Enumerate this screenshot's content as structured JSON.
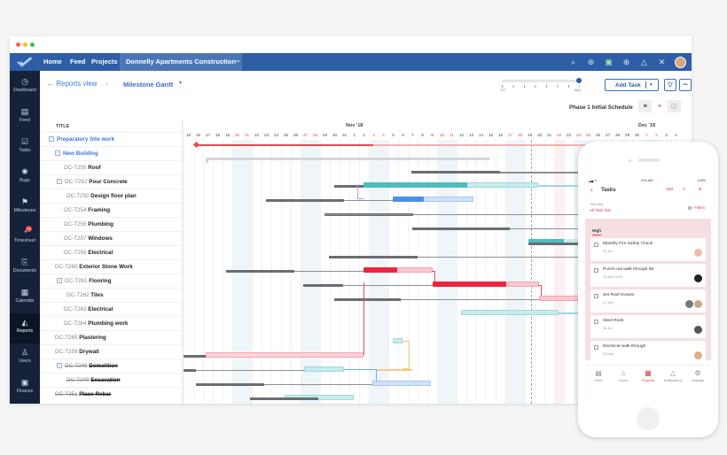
{
  "window": {
    "traffic_lights": [
      "#ff5f56",
      "#ffbd2e",
      "#27c93f"
    ]
  },
  "nav": {
    "logo": "checkmark-logo",
    "items": [
      "Home",
      "Feed",
      "Projects"
    ],
    "active_project": "Donnelly Apartments Construction",
    "more": "•••",
    "icons": [
      "search-icon",
      "gamepad-icon",
      "chat-icon",
      "plus-circle-icon",
      "bell-icon",
      "tools-icon",
      "avatar"
    ]
  },
  "sidebar": {
    "items": [
      {
        "label": "Dashboard",
        "icon": "dashboard-icon"
      },
      {
        "label": "Feed",
        "icon": "feed-icon"
      },
      {
        "label": "Tasks",
        "icon": "tasks-icon"
      },
      {
        "label": "Bugs",
        "icon": "bug-icon"
      },
      {
        "label": "Milestones",
        "icon": "milestone-icon"
      },
      {
        "label": "Timesheet",
        "icon": "timesheet-icon",
        "badge": "99"
      },
      {
        "label": "Documents",
        "icon": "documents-icon"
      },
      {
        "label": "Calendar",
        "icon": "calendar-icon"
      },
      {
        "label": "Reports",
        "icon": "reports-icon",
        "active": true
      },
      {
        "label": "Users",
        "icon": "users-icon"
      },
      {
        "label": "Finance",
        "icon": "finance-icon"
      }
    ]
  },
  "toolbar": {
    "back_label": "← Reports view",
    "crumb_sep": "›",
    "view_name": "Milestone Gantt",
    "dropdown_arrow": "▾",
    "zoom_min": "FIT",
    "zoom_max": "MAX",
    "add_task": "Add Task",
    "add_task_arrow": "▾",
    "filter_icon": "filter-icon",
    "more": "•••",
    "baseline": "Phase 1 Initial Schedule"
  },
  "gantt": {
    "title_header": "TITLE",
    "months": [
      {
        "label": "Nov '18",
        "day_index": 17
      },
      {
        "label": "Dec '18",
        "day_index": 47
      }
    ],
    "days": [
      "15",
      "16",
      "17",
      "18",
      "19",
      "20",
      "21",
      "22",
      "23",
      "24",
      "25",
      "26",
      "27",
      "28",
      "29",
      "30",
      "31",
      "1",
      "2",
      "3",
      "4",
      "5",
      "6",
      "7",
      "8",
      "9",
      "10",
      "11",
      "12",
      "13",
      "14",
      "15",
      "16",
      "17",
      "18",
      "19",
      "20",
      "21",
      "22",
      "23",
      "24",
      "25",
      "26",
      "27",
      "28",
      "29",
      "30",
      "1",
      "2",
      "3",
      "4"
    ],
    "weekend_idx": [
      5,
      6,
      12,
      13,
      19,
      20,
      26,
      27,
      33,
      34,
      40,
      41,
      47,
      48
    ],
    "rows": [
      {
        "id": "",
        "name": "Preparatory Site work",
        "level": 0,
        "group": true,
        "toggle": "−"
      },
      {
        "id": "",
        "name": "New Building",
        "level": 1,
        "group": true,
        "toggle": "−"
      },
      {
        "id": "DC-T255",
        "name": "Roof",
        "level": 2
      },
      {
        "id": "DC-T252",
        "name": "Pour Concrete",
        "level": 2,
        "toggle": "−"
      },
      {
        "id": "DC-T250",
        "name": "Design floor plan",
        "level": 3
      },
      {
        "id": "DC-T254",
        "name": "Framing",
        "level": 2
      },
      {
        "id": "DC-T256",
        "name": "Plumbing",
        "level": 2
      },
      {
        "id": "DC-T257",
        "name": "Windows",
        "level": 2
      },
      {
        "id": "DC-T258",
        "name": "Electrical",
        "level": 2
      },
      {
        "id": "DC-T260",
        "name": "Exterior Stone Work",
        "level": 1
      },
      {
        "id": "DC-T261",
        "name": "Flooring",
        "level": 2,
        "toggle": "−"
      },
      {
        "id": "DC-T262",
        "name": "Tiles",
        "level": 3
      },
      {
        "id": "DC-T263",
        "name": "Electrical",
        "level": 2
      },
      {
        "id": "DC-T264",
        "name": "Plumbing work",
        "level": 2
      },
      {
        "id": "DC-T265",
        "name": "Plastering",
        "level": 1
      },
      {
        "id": "DC-T259",
        "name": "Drywall",
        "level": 1
      },
      {
        "id": "DC-T248",
        "name": "Demolition",
        "level": 2,
        "toggle": "−",
        "strike": true
      },
      {
        "id": "DC-T249",
        "name": "Excavation",
        "level": 3,
        "strike": true
      },
      {
        "id": "DC-T251",
        "name": "Place Rebar",
        "level": 1,
        "strike": true
      }
    ]
  },
  "phone": {
    "status_time": "9:41 AM",
    "status_battery": "100%",
    "title": "Tasks",
    "task_lists_label": "Task lists",
    "task_lists_value": "All Task lists",
    "filters": "Filters",
    "section": "High",
    "tasks": [
      {
        "title": "Monthly Fire Safety Check",
        "date": "31 Jul",
        "avatars": [
          "#e8c0a8"
        ]
      },
      {
        "title": "Punch-out walk through list",
        "date": "23 Mar 2018",
        "avatars": [
          "#222"
        ]
      },
      {
        "title": "Set Roof trusses",
        "date": "17 Jan",
        "avatars": [
          "#777",
          "#c9a58c"
        ]
      },
      {
        "title": "Steel Rods",
        "date": "28 Jul",
        "avatars": [
          "#555"
        ]
      },
      {
        "title": "Electrical walk-through",
        "date": "03 Mar",
        "avatars": [
          "#d8b08c"
        ]
      }
    ],
    "tabs": [
      {
        "label": "Feed",
        "icon": "feed-icon"
      },
      {
        "label": "Home",
        "icon": "home-icon"
      },
      {
        "label": "Projects",
        "icon": "projects-icon",
        "active": true
      },
      {
        "label": "Notifications",
        "icon": "bell-icon"
      },
      {
        "label": "Settings",
        "icon": "settings-icon"
      }
    ]
  },
  "colors": {
    "nav_blue": "#2d5ea6",
    "sidebar": "#16213a",
    "teal": "#4dbdbd",
    "red": "#f0243f",
    "blue_bar": "#4a90e8",
    "phone_accent": "#e0404a"
  }
}
